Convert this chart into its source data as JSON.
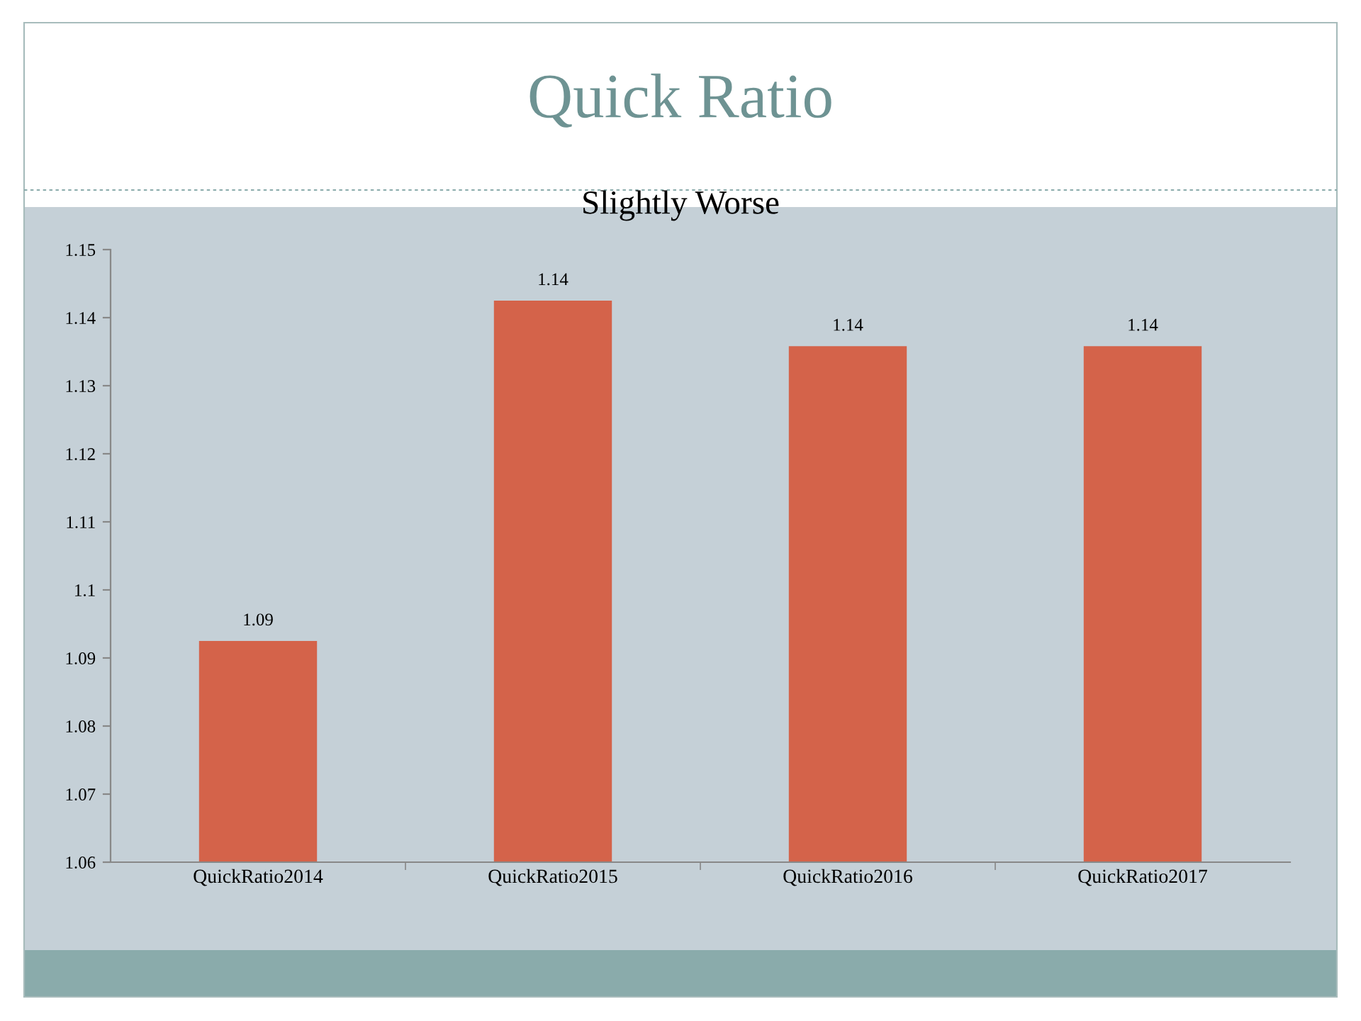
{
  "chart_data": {
    "type": "bar",
    "title": "Quick Ratio",
    "subtitle": "Slightly Worse",
    "categories": [
      "QuickRatio2014",
      "QuickRatio2015",
      "QuickRatio2016",
      "QuickRatio2017"
    ],
    "values": [
      1.0925,
      1.1425,
      1.1358,
      1.1358
    ],
    "value_labels": [
      "1.09",
      "1.14",
      "1.14",
      "1.14"
    ],
    "color": "#d4634a",
    "ylim": [
      1.06,
      1.15
    ],
    "yticks": [
      1.06,
      1.07,
      1.08,
      1.09,
      1.1,
      1.11,
      1.12,
      1.13,
      1.14,
      1.15
    ],
    "grid": false,
    "legend": false
  }
}
